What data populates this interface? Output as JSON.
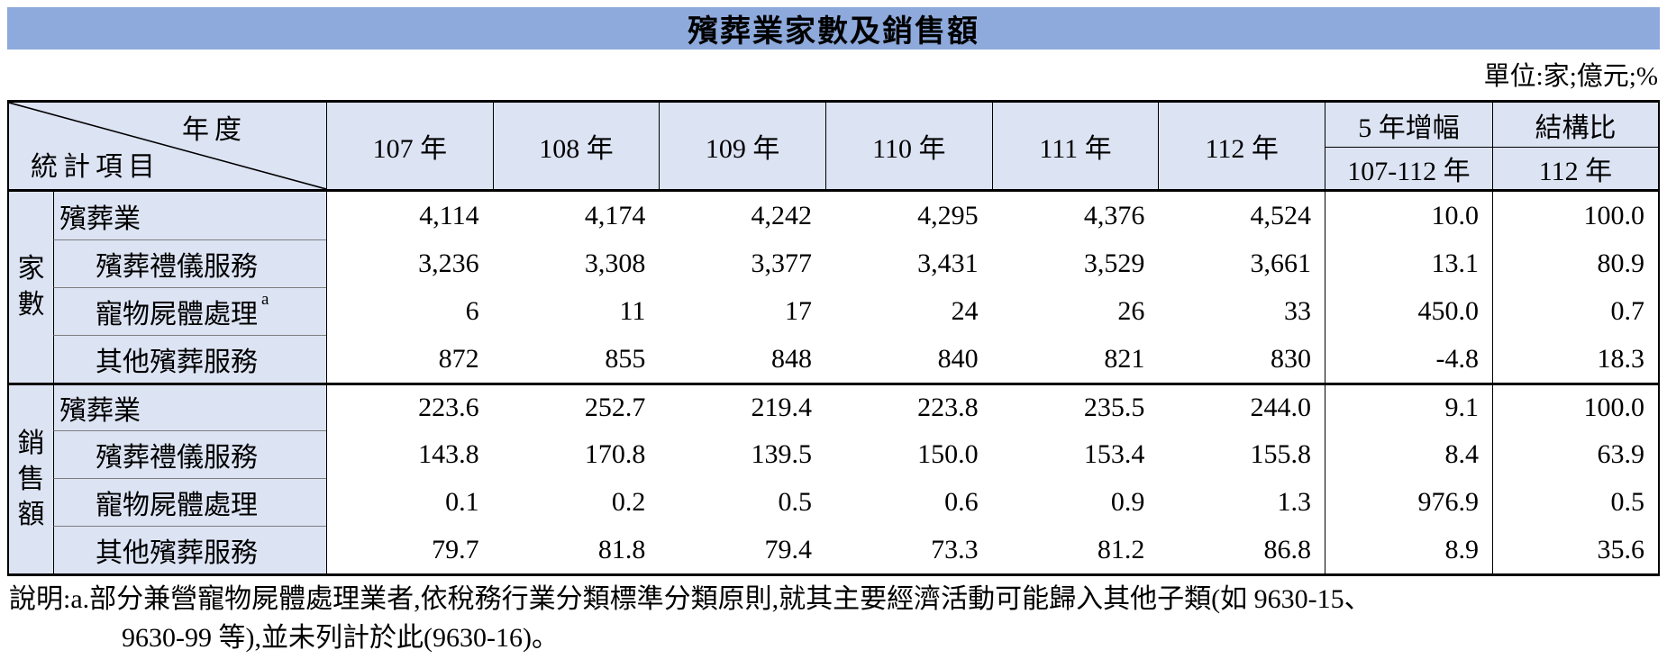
{
  "title": "殯葬業家數及銷售額",
  "unit_note": "單位:家;億元;%",
  "colors": {
    "title_bar": "#8EAADC",
    "header_bg": "#DCE3F3",
    "border": "#000000",
    "row_separator": "#7E7E7E"
  },
  "table": {
    "corner": {
      "top_right": "年度",
      "bottom_left": "統計項目"
    },
    "year_columns": [
      "107 年",
      "108 年",
      "109 年",
      "110 年",
      "111 年",
      "112 年"
    ],
    "growth_column": {
      "title": "5 年增幅",
      "sub": "107-112 年"
    },
    "structure_column": {
      "title": "結構比",
      "sub": "112 年"
    },
    "groups": [
      {
        "label": "家數",
        "rows": [
          {
            "item": "殯葬業",
            "indent": false,
            "sup": "",
            "values": [
              "4,114",
              "4,174",
              "4,242",
              "4,295",
              "4,376",
              "4,524"
            ],
            "growth": "10.0",
            "structure": "100.0"
          },
          {
            "item": "殯葬禮儀服務",
            "indent": true,
            "sup": "",
            "values": [
              "3,236",
              "3,308",
              "3,377",
              "3,431",
              "3,529",
              "3,661"
            ],
            "growth": "13.1",
            "structure": "80.9"
          },
          {
            "item": "寵物屍體處理",
            "indent": true,
            "sup": "a",
            "values": [
              "6",
              "11",
              "17",
              "24",
              "26",
              "33"
            ],
            "growth": "450.0",
            "structure": "0.7"
          },
          {
            "item": "其他殯葬服務",
            "indent": true,
            "sup": "",
            "values": [
              "872",
              "855",
              "848",
              "840",
              "821",
              "830"
            ],
            "growth": "-4.8",
            "structure": "18.3"
          }
        ]
      },
      {
        "label": "銷售額",
        "rows": [
          {
            "item": "殯葬業",
            "indent": false,
            "sup": "",
            "values": [
              "223.6",
              "252.7",
              "219.4",
              "223.8",
              "235.5",
              "244.0"
            ],
            "growth": "9.1",
            "structure": "100.0"
          },
          {
            "item": "殯葬禮儀服務",
            "indent": true,
            "sup": "",
            "values": [
              "143.8",
              "170.8",
              "139.5",
              "150.0",
              "153.4",
              "155.8"
            ],
            "growth": "8.4",
            "structure": "63.9"
          },
          {
            "item": "寵物屍體處理",
            "indent": true,
            "sup": "",
            "values": [
              "0.1",
              "0.2",
              "0.5",
              "0.6",
              "0.9",
              "1.3"
            ],
            "growth": "976.9",
            "structure": "0.5"
          },
          {
            "item": "其他殯葬服務",
            "indent": true,
            "sup": "",
            "values": [
              "79.7",
              "81.8",
              "79.4",
              "73.3",
              "81.2",
              "86.8"
            ],
            "growth": "8.9",
            "structure": "35.6"
          }
        ]
      }
    ]
  },
  "footnote": {
    "line1": "說明:a.部分兼營寵物屍體處理業者,依稅務行業分類標準分類原則,就其主要經濟活動可能歸入其他子類(如 9630-15、",
    "line2": "9630-99 等),並未列計於此(9630-16)。"
  }
}
